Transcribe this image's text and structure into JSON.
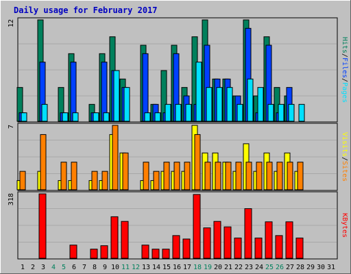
{
  "title": "Daily usage for February 2017",
  "colors": {
    "background": "#c0c0c0",
    "title": "#0000c0",
    "hits": "#00805c",
    "files": "#0040ff",
    "pages": "#00e0ff",
    "visits": "#ffff00",
    "sites": "#ff8000",
    "kbytes": "#ff0000",
    "gridline": "#a8a8a8",
    "weekend_day": "#00805c",
    "weekday": "#000000"
  },
  "legends": {
    "top": [
      {
        "text": "Hits",
        "color": "#00805c"
      },
      {
        "text": "/",
        "color": "#000000"
      },
      {
        "text": "Files",
        "color": "#0040ff"
      },
      {
        "text": "/",
        "color": "#000000"
      },
      {
        "text": "Pages",
        "color": "#00e0ff"
      }
    ],
    "middle": [
      {
        "text": "Visits",
        "color": "#ffff00"
      },
      {
        "text": "/",
        "color": "#000000"
      },
      {
        "text": "Sites",
        "color": "#ff8000"
      }
    ],
    "bottom": [
      {
        "text": "KBytes",
        "color": "#ff0000"
      }
    ]
  },
  "chart_data": [
    {
      "type": "bar",
      "panel": "hits_files_pages",
      "ymax_label": "12",
      "ylim": [
        0,
        12
      ],
      "x": [
        1,
        2,
        3,
        4,
        5,
        6,
        7,
        8,
        9,
        10,
        11,
        12,
        13,
        14,
        15,
        16,
        17,
        18,
        19,
        20,
        21,
        22,
        23,
        24,
        25,
        26,
        27,
        28,
        29,
        30,
        31
      ],
      "series": [
        {
          "name": "Hits",
          "values": [
            4,
            0,
            12,
            0,
            4,
            8,
            0,
            2,
            8,
            10,
            5,
            0,
            9,
            2,
            6,
            9,
            4,
            10,
            12,
            5,
            5,
            3,
            12,
            3,
            10,
            4,
            3,
            0,
            0,
            0,
            0
          ]
        },
        {
          "name": "Files",
          "values": [
            1,
            0,
            7,
            0,
            1,
            7,
            0,
            1,
            7,
            6,
            4,
            0,
            8,
            2,
            1,
            8,
            3,
            2,
            9,
            5,
            5,
            3,
            11,
            1,
            9,
            1,
            4,
            0,
            0,
            0,
            0
          ]
        },
        {
          "name": "Pages",
          "values": [
            1,
            0,
            2,
            0,
            1,
            1,
            0,
            1,
            1,
            6,
            4,
            0,
            1,
            1,
            2,
            2,
            2,
            7,
            4,
            4,
            4,
            2,
            5,
            4,
            2,
            2,
            2,
            2,
            0,
            0,
            0
          ]
        }
      ]
    },
    {
      "type": "bar",
      "panel": "visits_sites",
      "ymax_label": "7",
      "ylim": [
        0,
        7
      ],
      "x": [
        1,
        2,
        3,
        4,
        5,
        6,
        7,
        8,
        9,
        10,
        11,
        12,
        13,
        14,
        15,
        16,
        17,
        18,
        19,
        20,
        21,
        22,
        23,
        24,
        25,
        26,
        27,
        28,
        29,
        30,
        31
      ],
      "series": [
        {
          "name": "Visits",
          "values": [
            1,
            0,
            2,
            0,
            1,
            1,
            0,
            1,
            1,
            6,
            4,
            0,
            1,
            1,
            2,
            2,
            2,
            7,
            4,
            4,
            3,
            2,
            5,
            2,
            4,
            2,
            4,
            2,
            0,
            0,
            0
          ]
        },
        {
          "name": "Sites",
          "values": [
            2,
            0,
            6,
            0,
            3,
            3,
            0,
            2,
            2,
            7,
            4,
            0,
            3,
            2,
            3,
            3,
            3,
            6,
            3,
            3,
            3,
            3,
            3,
            3,
            3,
            3,
            3,
            3,
            0,
            0,
            0
          ]
        }
      ]
    },
    {
      "type": "bar",
      "panel": "kbytes",
      "ymax_label": "318",
      "ylim": [
        0,
        318
      ],
      "x": [
        1,
        2,
        3,
        4,
        5,
        6,
        7,
        8,
        9,
        10,
        11,
        12,
        13,
        14,
        15,
        16,
        17,
        18,
        19,
        20,
        21,
        22,
        23,
        24,
        25,
        26,
        27,
        28,
        29,
        30,
        31
      ],
      "series": [
        {
          "name": "KBytes",
          "values": [
            0,
            0,
            318,
            0,
            0,
            65,
            0,
            45,
            62,
            205,
            182,
            0,
            65,
            45,
            45,
            112,
            95,
            315,
            150,
            182,
            155,
            100,
            245,
            100,
            180,
            112,
            180,
            100,
            0,
            0,
            0
          ]
        }
      ]
    }
  ],
  "x_labels": [
    {
      "text": "1",
      "weekend": false
    },
    {
      "text": "2",
      "weekend": false
    },
    {
      "text": "3",
      "weekend": false
    },
    {
      "text": "4",
      "weekend": true
    },
    {
      "text": "5",
      "weekend": true
    },
    {
      "text": "6",
      "weekend": false
    },
    {
      "text": "7",
      "weekend": false
    },
    {
      "text": "8",
      "weekend": false
    },
    {
      "text": "9",
      "weekend": false
    },
    {
      "text": "10",
      "weekend": false
    },
    {
      "text": "11",
      "weekend": true
    },
    {
      "text": "12",
      "weekend": true
    },
    {
      "text": "13",
      "weekend": false
    },
    {
      "text": "14",
      "weekend": false
    },
    {
      "text": "15",
      "weekend": false
    },
    {
      "text": "16",
      "weekend": false
    },
    {
      "text": "17",
      "weekend": false
    },
    {
      "text": "18",
      "weekend": true
    },
    {
      "text": "19",
      "weekend": true
    },
    {
      "text": "20",
      "weekend": false
    },
    {
      "text": "21",
      "weekend": false
    },
    {
      "text": "22",
      "weekend": false
    },
    {
      "text": "23",
      "weekend": false
    },
    {
      "text": "24",
      "weekend": false
    },
    {
      "text": "25",
      "weekend": true
    },
    {
      "text": "26",
      "weekend": true
    },
    {
      "text": "27",
      "weekend": false
    },
    {
      "text": "28",
      "weekend": false
    },
    {
      "text": "29",
      "weekend": false
    },
    {
      "text": "30",
      "weekend": false
    },
    {
      "text": "31",
      "weekend": false
    }
  ]
}
